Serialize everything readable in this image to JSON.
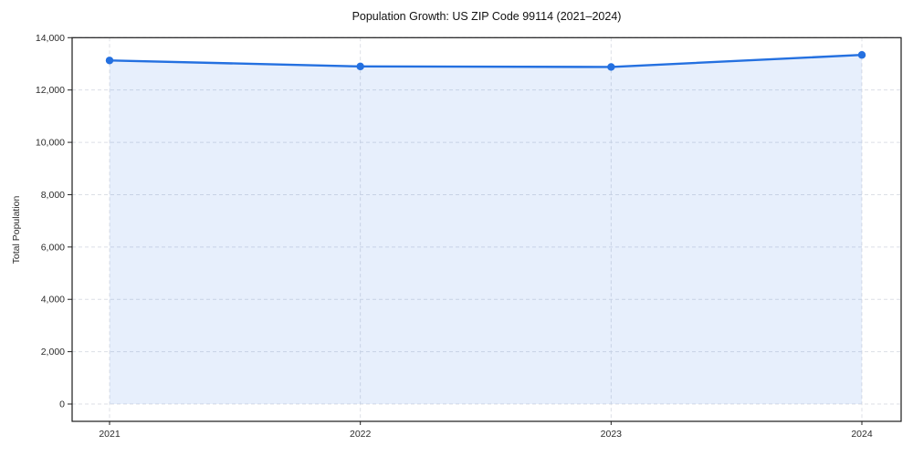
{
  "chart_data": {
    "type": "line",
    "title": "Population Growth: US ZIP Code 99114 (2021–2024)",
    "xlabel": "",
    "ylabel": "Total Population",
    "x": [
      2021,
      2022,
      2023,
      2024
    ],
    "xtick_labels": [
      "2021",
      "2022",
      "2023",
      "2024"
    ],
    "series": [
      {
        "name": "Total Population",
        "values": [
          13130,
          12900,
          12880,
          13340
        ]
      }
    ],
    "ylim": [
      0,
      14000
    ],
    "yticks": [
      0,
      2000,
      4000,
      6000,
      8000,
      10000,
      12000,
      14000
    ],
    "ytick_labels": [
      "0",
      "2,000",
      "4,000",
      "6,000",
      "8,000",
      "10,000",
      "12,000",
      "14,000"
    ],
    "grid": true,
    "grid_style": "dashed",
    "legend": "none",
    "marker": "circle",
    "area_fill": true,
    "colors": {
      "line": "#2470e0",
      "marker": "#2470e0",
      "fill": "rgba(36,112,224,0.11)",
      "grid": "#dcdfe6",
      "spine": "#1a1a1a",
      "tick": "#222222",
      "title": "#111111",
      "background": "#ffffff"
    }
  }
}
